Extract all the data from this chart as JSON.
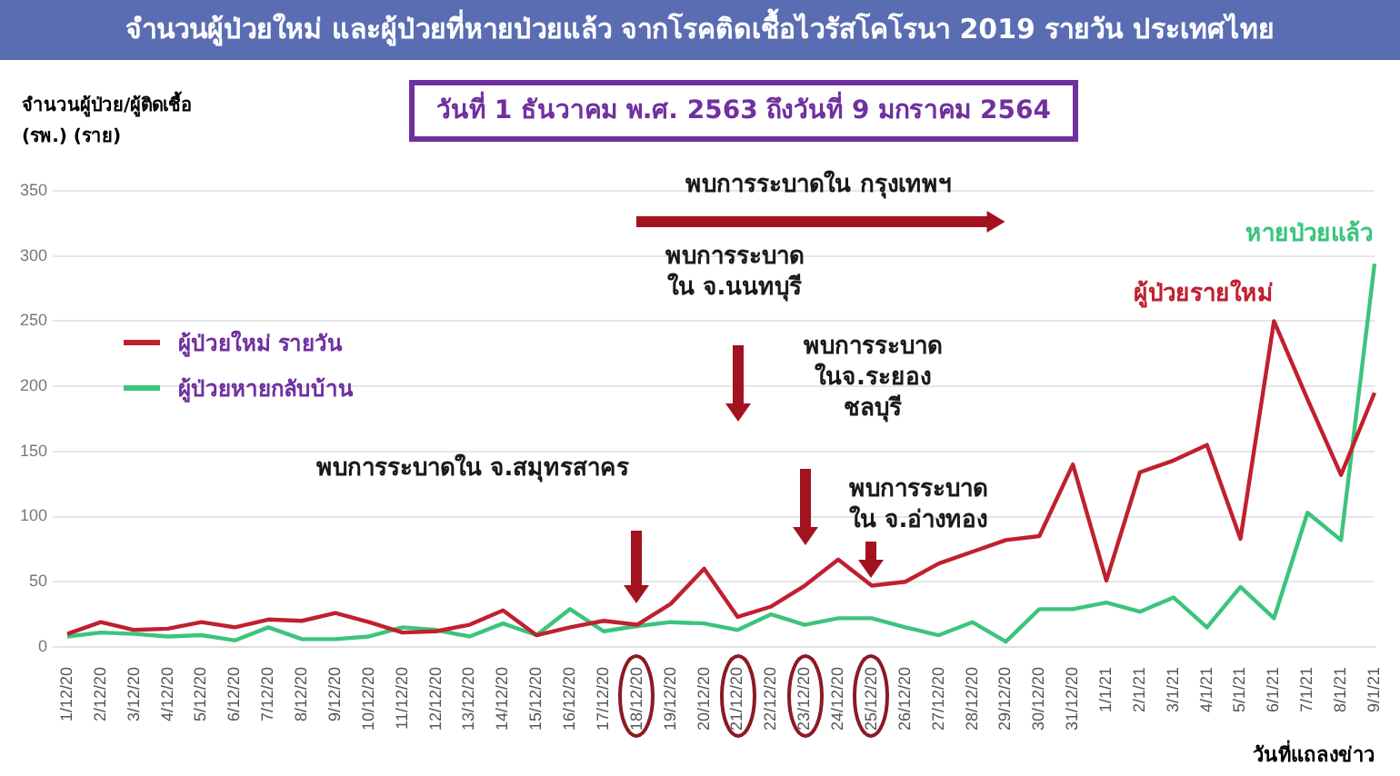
{
  "chart_data": {
    "type": "line",
    "title": "จำนวนผู้ป่วยใหม่ และผู้ป่วยที่หายป่วยแล้ว จากโรคติดเชื้อไวรัสโคโรนา 2019 รายวัน ประเทศไทย",
    "subtitle": "วันที่ 1 ธันวาคม พ.ศ. 2563 ถึงวันที่ 9 มกราคม 2564",
    "ylabel": "จำนวนผู้ป่วย/ผู้ติดเชื้อ\n(รพ.) (ราย)",
    "xlabel": "วันที่แถลงข่าว",
    "categories": [
      "1/12/20",
      "2/12/20",
      "3/12/20",
      "4/12/20",
      "5/12/20",
      "6/12/20",
      "7/12/20",
      "8/12/20",
      "9/12/20",
      "10/12/20",
      "11/12/20",
      "12/12/20",
      "13/12/20",
      "14/12/20",
      "15/12/20",
      "16/12/20",
      "17/12/20",
      "18/12/20",
      "19/12/20",
      "20/12/20",
      "21/12/20",
      "22/12/20",
      "23/12/20",
      "24/12/20",
      "25/12/20",
      "26/12/20",
      "27/12/20",
      "28/12/20",
      "29/12/20",
      "30/12/20",
      "31/12/20",
      "1/1/21",
      "2/1/21",
      "3/1/21",
      "4/1/21",
      "5/1/21",
      "6/1/21",
      "7/1/21",
      "8/1/21",
      "9/1/21"
    ],
    "series": [
      {
        "name": "ผู้ป่วยใหม่ รายวัน",
        "color": "#c0202f",
        "values": [
          10,
          19,
          13,
          14,
          19,
          15,
          21,
          20,
          26,
          19,
          11,
          12,
          17,
          28,
          9,
          15,
          20,
          17,
          33,
          60,
          23,
          31,
          47,
          67,
          47,
          50,
          64,
          73,
          82,
          85,
          140,
          51,
          134,
          143,
          155,
          83,
          250,
          190,
          132,
          195
        ]
      },
      {
        "name": "ผู้ป่วยหายกลับบ้าน",
        "color": "#3cc47c",
        "values": [
          8,
          11,
          10,
          8,
          9,
          5,
          15,
          6,
          6,
          8,
          15,
          13,
          8,
          18,
          9,
          29,
          12,
          16,
          19,
          18,
          13,
          25,
          17,
          22,
          22,
          15,
          9,
          19,
          4,
          29,
          29,
          34,
          27,
          38,
          15,
          46,
          22,
          103,
          82,
          294
        ]
      }
    ],
    "ylim": [
      0,
      350
    ],
    "yticks": [
      0,
      50,
      100,
      150,
      200,
      250,
      300,
      350
    ],
    "grid": "y",
    "legend": "top left",
    "annotations": [
      "พบการระบาดใน กรุงเทพฯ",
      "พบการระบาด\nใน จ.นนทบุรี",
      "พบการระบาด\nในจ.ระยอง\nชลบุรี",
      "พบการระบาดใน จ.สมุทรสาคร",
      "พบการระบาด\nใน จ.อ่างทอง",
      "ผู้ป่วยรายใหม่",
      "หายป่วยแล้ว"
    ]
  }
}
